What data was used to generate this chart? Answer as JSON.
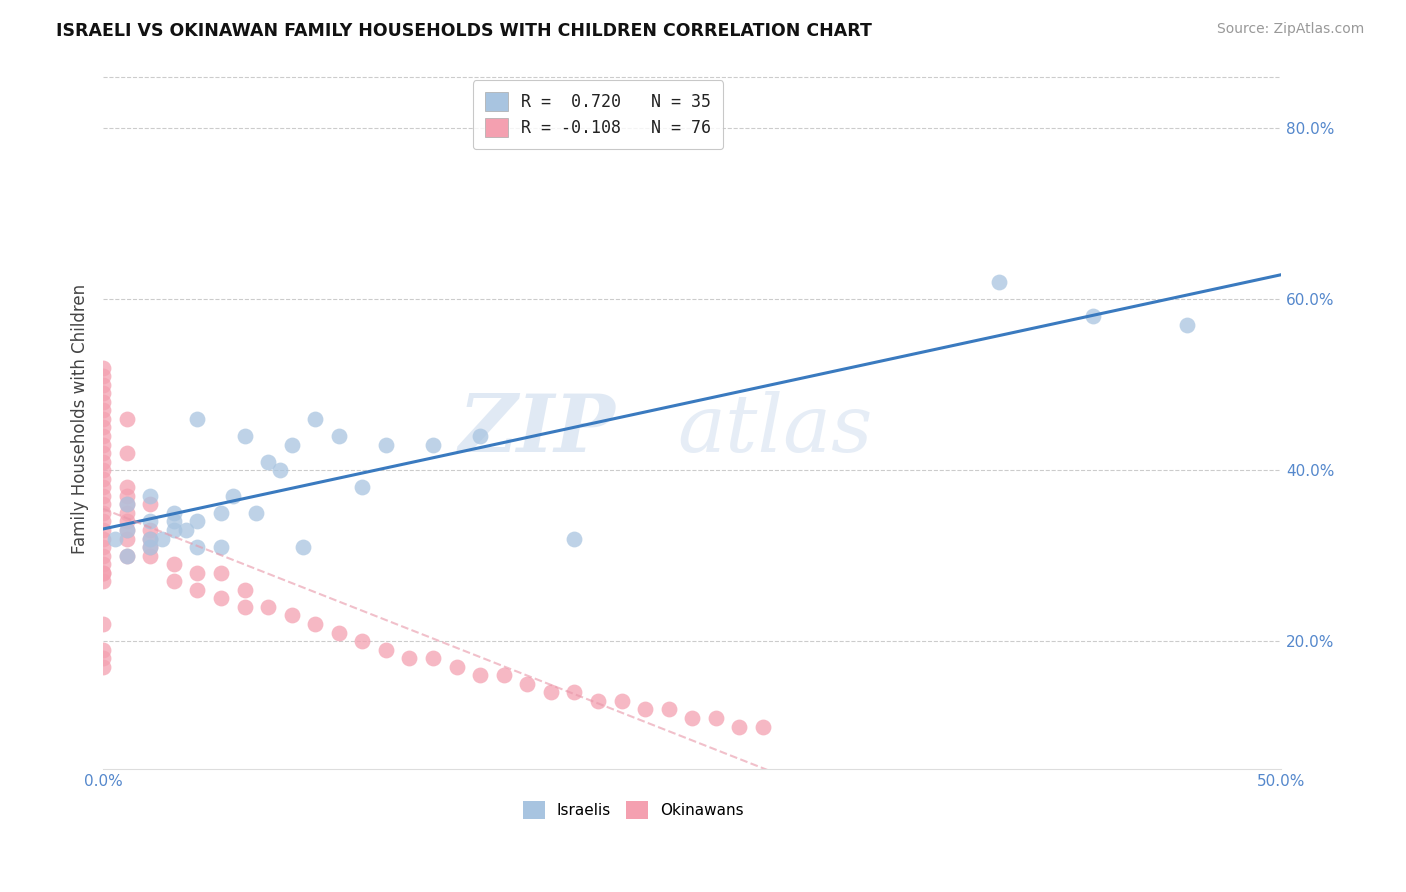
{
  "title": "ISRAELI VS OKINAWAN FAMILY HOUSEHOLDS WITH CHILDREN CORRELATION CHART",
  "source": "Source: ZipAtlas.com",
  "ylabel": "Family Households with Children",
  "xlim": [
    0.0,
    0.5
  ],
  "ylim": [
    0.05,
    0.87
  ],
  "xticks": [
    0.0,
    0.1,
    0.2,
    0.3,
    0.4,
    0.5
  ],
  "yticks": [
    0.2,
    0.4,
    0.6,
    0.8
  ],
  "xticklabels": [
    "0.0%",
    "",
    "",
    "",
    "",
    "50.0%"
  ],
  "yticklabels": [
    "20.0%",
    "40.0%",
    "60.0%",
    "80.0%"
  ],
  "watermark_zip": "ZIP",
  "watermark_atlas": "atlas",
  "legend_label1": "R =  0.720   N = 35",
  "legend_label2": "R = -0.108   N = 76",
  "color_israeli": "#a8c4e0",
  "color_okinawan": "#f4a0b0",
  "line_israeli": "#3a7abf",
  "line_okinawan": "#e896a8",
  "israeli_x": [
    0.005,
    0.01,
    0.01,
    0.01,
    0.02,
    0.02,
    0.02,
    0.02,
    0.025,
    0.03,
    0.03,
    0.03,
    0.035,
    0.04,
    0.04,
    0.04,
    0.05,
    0.05,
    0.055,
    0.06,
    0.065,
    0.07,
    0.075,
    0.08,
    0.085,
    0.09,
    0.1,
    0.11,
    0.12,
    0.14,
    0.16,
    0.2,
    0.38,
    0.42,
    0.46
  ],
  "israeli_y": [
    0.32,
    0.3,
    0.33,
    0.36,
    0.31,
    0.32,
    0.34,
    0.37,
    0.32,
    0.33,
    0.34,
    0.35,
    0.33,
    0.31,
    0.34,
    0.46,
    0.31,
    0.35,
    0.37,
    0.44,
    0.35,
    0.41,
    0.4,
    0.43,
    0.31,
    0.46,
    0.44,
    0.38,
    0.43,
    0.43,
    0.44,
    0.32,
    0.62,
    0.58,
    0.57
  ],
  "okinawan_x": [
    0.0,
    0.0,
    0.0,
    0.0,
    0.0,
    0.0,
    0.0,
    0.0,
    0.0,
    0.0,
    0.0,
    0.0,
    0.0,
    0.0,
    0.0,
    0.0,
    0.0,
    0.0,
    0.0,
    0.0,
    0.0,
    0.0,
    0.0,
    0.0,
    0.0,
    0.0,
    0.0,
    0.0,
    0.0,
    0.0,
    0.0,
    0.01,
    0.01,
    0.01,
    0.01,
    0.01,
    0.01,
    0.01,
    0.01,
    0.01,
    0.01,
    0.02,
    0.02,
    0.02,
    0.02,
    0.02,
    0.03,
    0.03,
    0.04,
    0.04,
    0.05,
    0.05,
    0.06,
    0.06,
    0.07,
    0.08,
    0.09,
    0.1,
    0.11,
    0.12,
    0.13,
    0.14,
    0.15,
    0.16,
    0.17,
    0.18,
    0.19,
    0.2,
    0.21,
    0.22,
    0.23,
    0.24,
    0.25,
    0.26,
    0.27,
    0.28
  ],
  "okinawan_y": [
    0.27,
    0.28,
    0.29,
    0.3,
    0.31,
    0.32,
    0.33,
    0.34,
    0.35,
    0.36,
    0.37,
    0.38,
    0.39,
    0.4,
    0.41,
    0.42,
    0.43,
    0.44,
    0.45,
    0.46,
    0.47,
    0.48,
    0.49,
    0.5,
    0.51,
    0.52,
    0.17,
    0.18,
    0.19,
    0.22,
    0.28,
    0.3,
    0.32,
    0.33,
    0.34,
    0.35,
    0.36,
    0.37,
    0.38,
    0.42,
    0.46,
    0.3,
    0.31,
    0.32,
    0.33,
    0.36,
    0.27,
    0.29,
    0.26,
    0.28,
    0.25,
    0.28,
    0.24,
    0.26,
    0.24,
    0.23,
    0.22,
    0.21,
    0.2,
    0.19,
    0.18,
    0.18,
    0.17,
    0.16,
    0.16,
    0.15,
    0.14,
    0.14,
    0.13,
    0.13,
    0.12,
    0.12,
    0.11,
    0.11,
    0.1,
    0.1
  ]
}
